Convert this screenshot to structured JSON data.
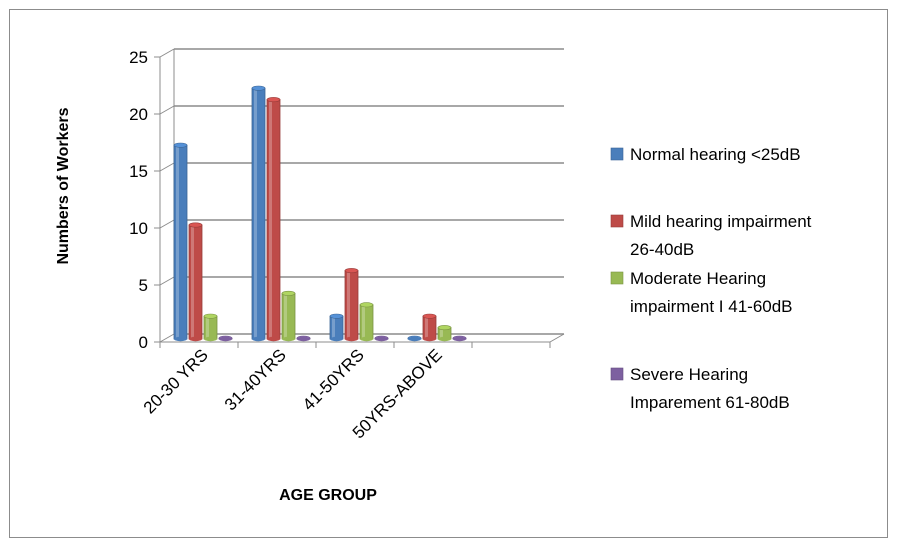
{
  "chart_data": {
    "type": "bar",
    "title": "",
    "xlabel": "AGE GROUP",
    "ylabel": "Numbers of Workers",
    "categories": [
      "20-30 YRS",
      "31-40YRS",
      "41-50YRS",
      "50YRS-ABOVE"
    ],
    "ylim": [
      0,
      25
    ],
    "yticks": [
      "0",
      "5",
      "10",
      "15",
      "20",
      "25"
    ],
    "grid": true,
    "legend_position": "right",
    "series": [
      {
        "name": "Normal hearing <25dB",
        "legend_lines": [
          "Normal hearing <25dB"
        ],
        "color": "#4a7ebb",
        "values": [
          17,
          22,
          2,
          0
        ]
      },
      {
        "name": "Mild hearing impairment 26-40dB",
        "legend_lines": [
          "Mild hearing impairment",
          "26-40dB"
        ],
        "color": "#be4b48",
        "values": [
          10,
          21,
          6,
          2
        ]
      },
      {
        "name": "Moderate Hearing impairment I 41-60dB",
        "legend_lines": [
          "Moderate Hearing",
          "impairment I 41-60dB"
        ],
        "color": "#98b954",
        "values": [
          2,
          4,
          3,
          1
        ]
      },
      {
        "name": "Severe Hearing Imparement 61-80dB",
        "legend_lines": [
          "Severe Hearing",
          "Imparement 61-80dB"
        ],
        "color": "#7d60a0",
        "values": [
          0,
          0,
          0,
          0
        ]
      }
    ]
  }
}
